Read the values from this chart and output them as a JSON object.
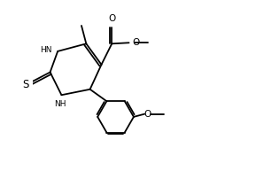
{
  "bg_color": "#ffffff",
  "line_color": "#000000",
  "lw": 1.3,
  "fs": 6.5,
  "fig_width": 2.89,
  "fig_height": 1.93,
  "dpi": 100,
  "xlim": [
    0,
    10
  ],
  "ylim": [
    -4.5,
    4.5
  ]
}
